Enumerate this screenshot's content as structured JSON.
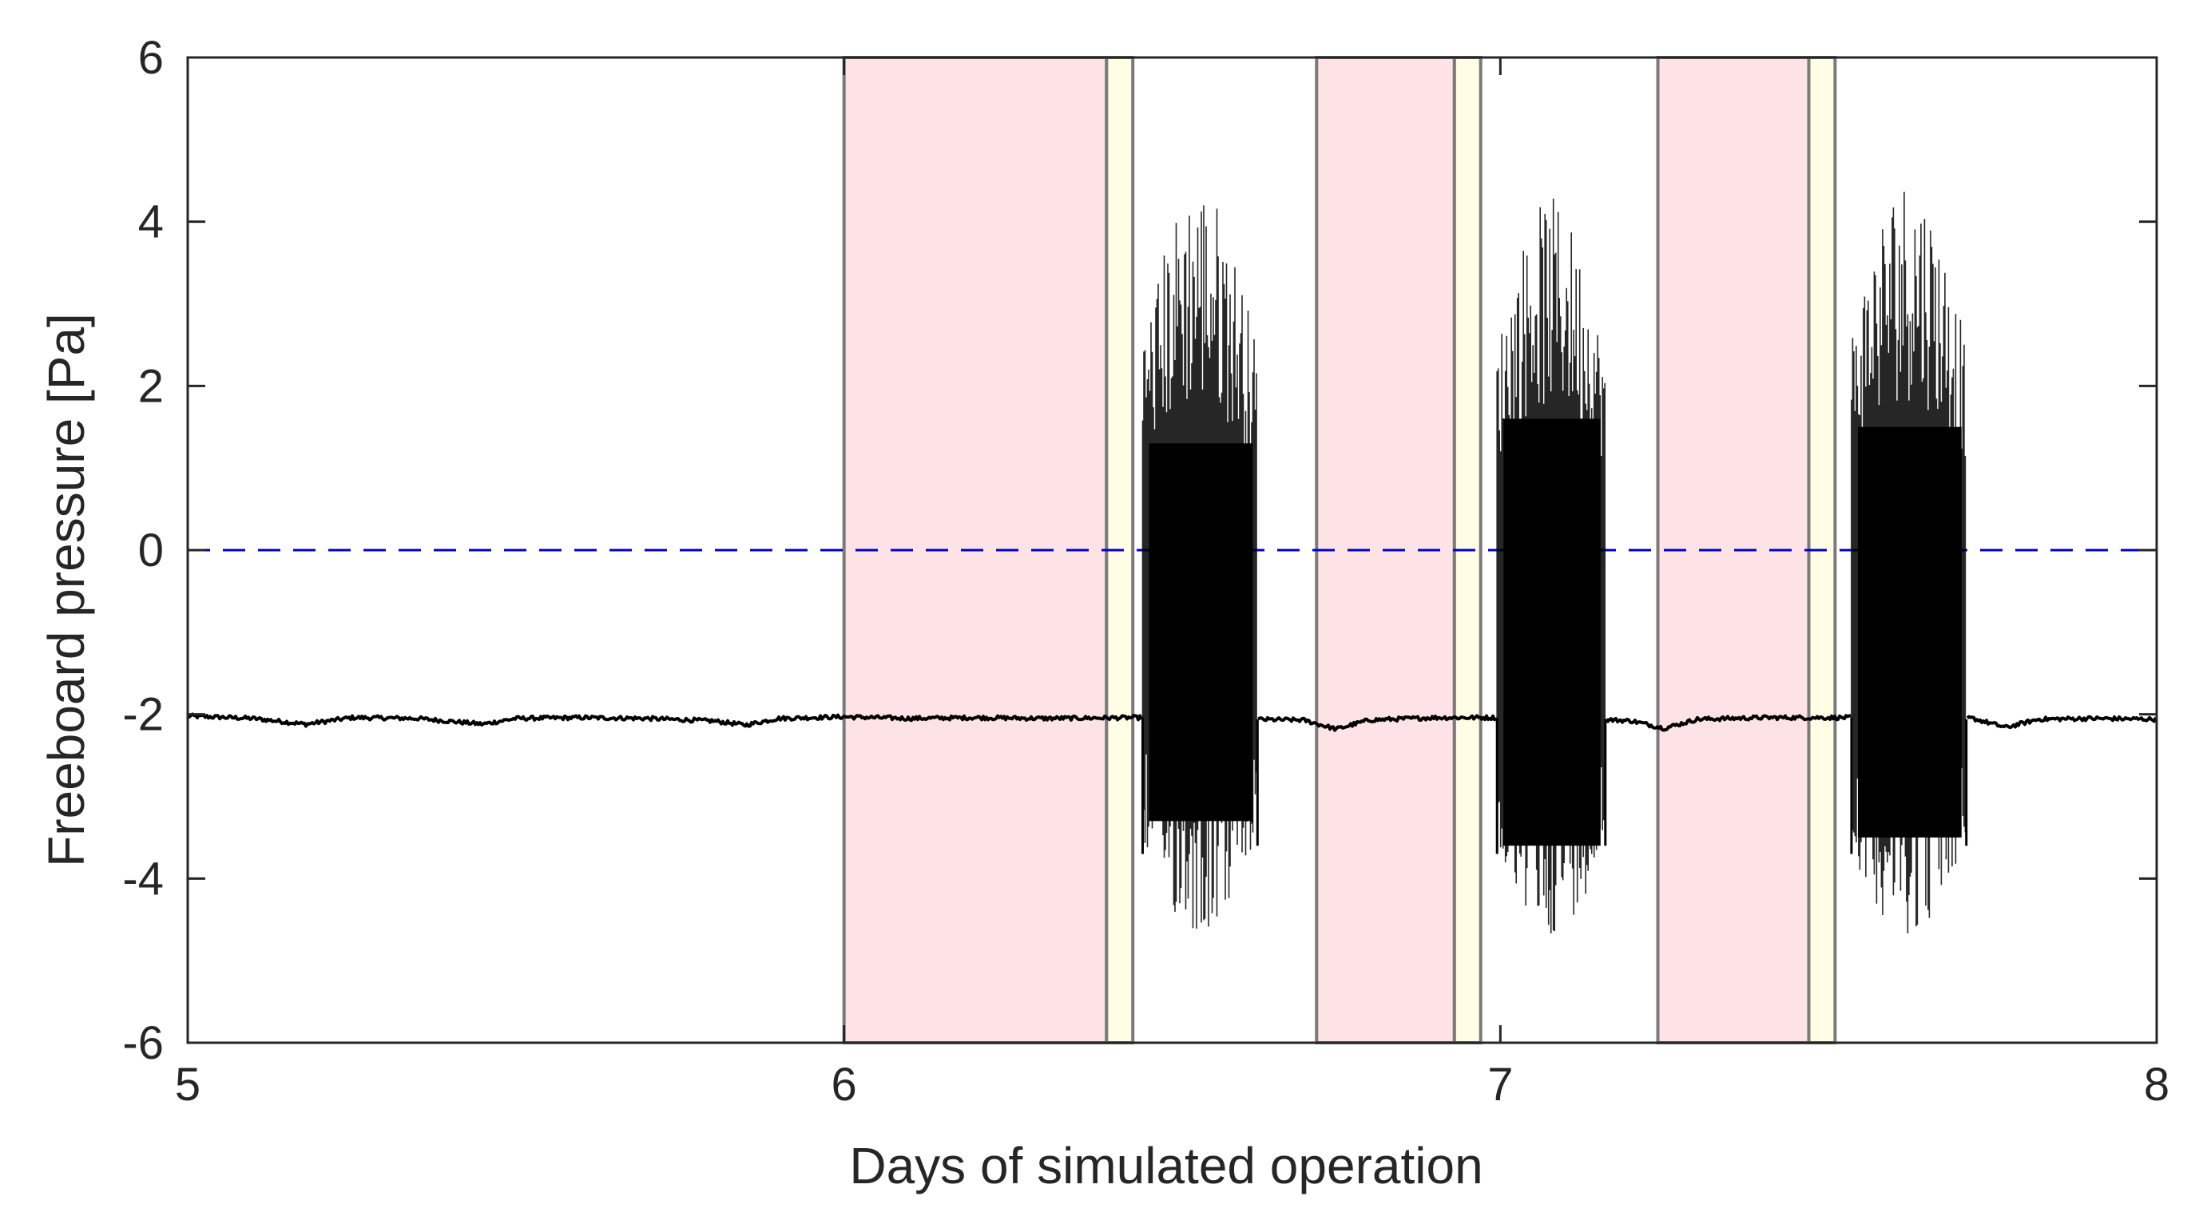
{
  "chart_data": {
    "type": "line",
    "title": "",
    "xlabel": "Days of simulated operation",
    "ylabel": "Freeboard pressure [Pa]",
    "xlim": [
      5,
      8
    ],
    "ylim": [
      -6,
      6
    ],
    "xticks": [
      5,
      6,
      7,
      8
    ],
    "yticks": [
      6,
      4,
      2,
      0,
      -2,
      -4,
      -6
    ],
    "xtick_labels": [
      "5",
      "6",
      "7",
      "8"
    ],
    "ytick_labels": [
      "6",
      "4",
      "2",
      "0",
      "-2",
      "-4",
      "-6"
    ],
    "grid": false,
    "reference_line": {
      "y": 0,
      "style": "dashed",
      "color": "#0000cc"
    },
    "shaded_regions": [
      {
        "x0": 6.0,
        "x1": 6.4,
        "color": "#fde3e5",
        "edge": "#7a7a7a"
      },
      {
        "x0": 6.4,
        "x1": 6.44,
        "color": "#fffde6",
        "edge": "#7a7a7a"
      },
      {
        "x0": 6.72,
        "x1": 6.93,
        "color": "#fde3e5",
        "edge": "#7a7a7a"
      },
      {
        "x0": 6.93,
        "x1": 6.97,
        "color": "#fffde6",
        "edge": "#7a7a7a"
      },
      {
        "x0": 7.24,
        "x1": 7.47,
        "color": "#fde3e5",
        "edge": "#7a7a7a"
      },
      {
        "x0": 7.47,
        "x1": 7.51,
        "color": "#fffde6",
        "edge": "#7a7a7a"
      }
    ],
    "series": [
      {
        "name": "Freeboard pressure",
        "color": "#000000",
        "baseline": [
          [
            5.0,
            -2.02
          ],
          [
            5.1,
            -2.05
          ],
          [
            5.18,
            -2.12
          ],
          [
            5.25,
            -2.04
          ],
          [
            5.35,
            -2.05
          ],
          [
            5.45,
            -2.12
          ],
          [
            5.5,
            -2.05
          ],
          [
            5.6,
            -2.04
          ],
          [
            5.7,
            -2.05
          ],
          [
            5.8,
            -2.08
          ],
          [
            5.85,
            -2.13
          ],
          [
            5.9,
            -2.05
          ],
          [
            6.0,
            -2.03
          ],
          [
            6.1,
            -2.05
          ],
          [
            6.2,
            -2.04
          ],
          [
            6.3,
            -2.05
          ],
          [
            6.44,
            -2.04
          ],
          [
            6.7,
            -2.07
          ],
          [
            6.75,
            -2.18
          ],
          [
            6.8,
            -2.07
          ],
          [
            6.9,
            -2.04
          ],
          [
            6.97,
            -2.04
          ],
          [
            7.1,
            -2.04
          ],
          [
            7.2,
            -2.08
          ],
          [
            7.25,
            -2.17
          ],
          [
            7.3,
            -2.06
          ],
          [
            7.4,
            -2.04
          ],
          [
            7.51,
            -2.04
          ],
          [
            7.72,
            -2.05
          ],
          [
            7.77,
            -2.16
          ],
          [
            7.82,
            -2.06
          ],
          [
            7.9,
            -2.05
          ],
          [
            8.0,
            -2.06
          ]
        ],
        "oscillation_bursts": [
          {
            "x0": 6.455,
            "x1": 6.63,
            "core_min": -3.3,
            "core_max": 1.3,
            "peak_max": 4.5,
            "peak_min": -4.7
          },
          {
            "x0": 6.995,
            "x1": 7.16,
            "core_min": -3.6,
            "core_max": 1.6,
            "peak_max": 4.3,
            "peak_min": -4.7
          },
          {
            "x0": 7.535,
            "x1": 7.71,
            "core_min": -3.5,
            "core_max": 1.5,
            "peak_max": 4.6,
            "peak_min": -4.7
          }
        ]
      }
    ]
  }
}
